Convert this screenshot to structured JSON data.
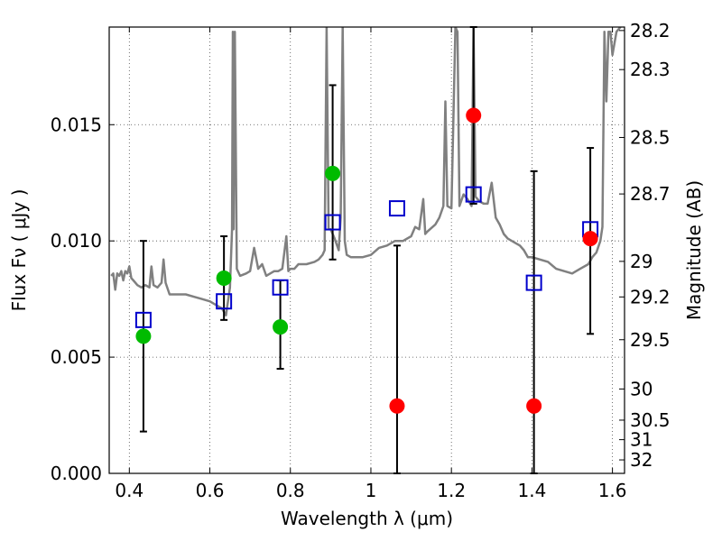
{
  "chart_data": {
    "type": "scatter",
    "xlabel": "Wavelength  λ (μm)",
    "ylabel": "Flux  Fν  ( μJy )",
    "y2label": "Magnitude (AB)",
    "xlim": [
      0.35,
      1.63
    ],
    "ylim": [
      0.0,
      0.0192
    ],
    "xticks": [
      0.4,
      0.6,
      0.8,
      1.0,
      1.2,
      1.4,
      1.6
    ],
    "xtick_labels": [
      "0.4",
      "0.6",
      "0.8",
      "1",
      "1.2",
      "1.4",
      "1.6"
    ],
    "yticks": [
      0.0,
      0.005,
      0.01,
      0.015
    ],
    "ytick_labels": [
      "0.000",
      "0.005",
      "0.010",
      "0.015"
    ],
    "y2ticks": [
      {
        "label": "28.2",
        "flux": 0.01905
      },
      {
        "label": "28.3",
        "flux": 0.01737
      },
      {
        "label": "28.5",
        "flux": 0.01445
      },
      {
        "label": "28.7",
        "flux": 0.01202
      },
      {
        "label": "29",
        "flux": 0.00912
      },
      {
        "label": "29.2",
        "flux": 0.00759
      },
      {
        "label": "29.5",
        "flux": 0.00575
      },
      {
        "label": "30",
        "flux": 0.00363
      },
      {
        "label": "30.5",
        "flux": 0.00229
      },
      {
        "label": "31",
        "flux": 0.00145
      },
      {
        "label": "32",
        "flux": 0.00058
      }
    ],
    "grid": true,
    "series": [
      {
        "style": "line",
        "color": "#808080",
        "points": [
          [
            0.355,
            0.0085
          ],
          [
            0.36,
            0.0086
          ],
          [
            0.365,
            0.0079
          ],
          [
            0.37,
            0.0086
          ],
          [
            0.375,
            0.0085
          ],
          [
            0.38,
            0.0087
          ],
          [
            0.385,
            0.0083
          ],
          [
            0.39,
            0.0087
          ],
          [
            0.395,
            0.0086
          ],
          [
            0.4,
            0.0089
          ],
          [
            0.405,
            0.0084
          ],
          [
            0.41,
            0.0083
          ],
          [
            0.415,
            0.0082
          ],
          [
            0.42,
            0.0081
          ],
          [
            0.43,
            0.008
          ],
          [
            0.44,
            0.0081
          ],
          [
            0.45,
            0.008
          ],
          [
            0.455,
            0.0089
          ],
          [
            0.46,
            0.0081
          ],
          [
            0.47,
            0.008
          ],
          [
            0.48,
            0.0082
          ],
          [
            0.485,
            0.0092
          ],
          [
            0.49,
            0.0082
          ],
          [
            0.5,
            0.0077
          ],
          [
            0.52,
            0.0077
          ],
          [
            0.54,
            0.0077
          ],
          [
            0.56,
            0.0076
          ],
          [
            0.58,
            0.0075
          ],
          [
            0.6,
            0.0074
          ],
          [
            0.62,
            0.0072
          ],
          [
            0.63,
            0.0071
          ],
          [
            0.64,
            0.0068
          ],
          [
            0.645,
            0.0074
          ],
          [
            0.65,
            0.008
          ],
          [
            0.655,
            0.0105
          ],
          [
            0.657,
            0.019
          ],
          [
            0.659,
            0.0105
          ],
          [
            0.662,
            0.019
          ],
          [
            0.667,
            0.0088
          ],
          [
            0.675,
            0.0085
          ],
          [
            0.69,
            0.0086
          ],
          [
            0.7,
            0.0087
          ],
          [
            0.71,
            0.0097
          ],
          [
            0.72,
            0.0088
          ],
          [
            0.73,
            0.009
          ],
          [
            0.74,
            0.0085
          ],
          [
            0.75,
            0.0086
          ],
          [
            0.76,
            0.0087
          ],
          [
            0.77,
            0.0087
          ],
          [
            0.78,
            0.0088
          ],
          [
            0.79,
            0.0102
          ],
          [
            0.795,
            0.0087
          ],
          [
            0.8,
            0.0088
          ],
          [
            0.81,
            0.0088
          ],
          [
            0.82,
            0.009
          ],
          [
            0.84,
            0.009
          ],
          [
            0.86,
            0.0091
          ],
          [
            0.87,
            0.0092
          ],
          [
            0.88,
            0.0094
          ],
          [
            0.885,
            0.0096
          ],
          [
            0.89,
            0.0192
          ],
          [
            0.895,
            0.0105
          ],
          [
            0.9,
            0.0105
          ],
          [
            0.91,
            0.0101
          ],
          [
            0.92,
            0.0096
          ],
          [
            0.925,
            0.011
          ],
          [
            0.93,
            0.0192
          ],
          [
            0.935,
            0.01
          ],
          [
            0.94,
            0.0094
          ],
          [
            0.95,
            0.0093
          ],
          [
            0.96,
            0.0093
          ],
          [
            0.98,
            0.0093
          ],
          [
            1.0,
            0.0094
          ],
          [
            1.02,
            0.0097
          ],
          [
            1.04,
            0.0098
          ],
          [
            1.06,
            0.01
          ],
          [
            1.08,
            0.01
          ],
          [
            1.1,
            0.0102
          ],
          [
            1.11,
            0.0106
          ],
          [
            1.12,
            0.0105
          ],
          [
            1.13,
            0.0118
          ],
          [
            1.135,
            0.0103
          ],
          [
            1.14,
            0.0104
          ],
          [
            1.16,
            0.0107
          ],
          [
            1.17,
            0.011
          ],
          [
            1.18,
            0.0115
          ],
          [
            1.185,
            0.016
          ],
          [
            1.19,
            0.0115
          ],
          [
            1.2,
            0.0114
          ],
          [
            1.21,
            0.0192
          ],
          [
            1.215,
            0.019
          ],
          [
            1.22,
            0.0115
          ],
          [
            1.23,
            0.012
          ],
          [
            1.24,
            0.0118
          ],
          [
            1.25,
            0.0115
          ],
          [
            1.255,
            0.0192
          ],
          [
            1.26,
            0.0119
          ],
          [
            1.27,
            0.0117
          ],
          [
            1.28,
            0.0116
          ],
          [
            1.29,
            0.0116
          ],
          [
            1.3,
            0.0125
          ],
          [
            1.31,
            0.011
          ],
          [
            1.32,
            0.0107
          ],
          [
            1.33,
            0.0103
          ],
          [
            1.34,
            0.0101
          ],
          [
            1.35,
            0.01
          ],
          [
            1.36,
            0.0099
          ],
          [
            1.37,
            0.0098
          ],
          [
            1.38,
            0.0096
          ],
          [
            1.39,
            0.0093
          ],
          [
            1.4,
            0.0093
          ],
          [
            1.42,
            0.0092
          ],
          [
            1.44,
            0.0091
          ],
          [
            1.46,
            0.0088
          ],
          [
            1.48,
            0.0087
          ],
          [
            1.5,
            0.0086
          ],
          [
            1.52,
            0.0088
          ],
          [
            1.54,
            0.009
          ],
          [
            1.55,
            0.0093
          ],
          [
            1.56,
            0.0095
          ],
          [
            1.57,
            0.01
          ],
          [
            1.575,
            0.0106
          ],
          [
            1.58,
            0.019
          ],
          [
            1.585,
            0.016
          ],
          [
            1.59,
            0.019
          ],
          [
            1.595,
            0.019
          ],
          [
            1.6,
            0.018
          ],
          [
            1.61,
            0.019
          ],
          [
            1.62,
            0.0192
          ]
        ]
      },
      {
        "style": "points",
        "marker": "square",
        "color": "#0000cc",
        "x": [
          0.435,
          0.635,
          0.775,
          0.905,
          1.065,
          1.255,
          1.405,
          1.545
        ],
        "y": [
          0.0066,
          0.0074,
          0.008,
          0.0108,
          0.0114,
          0.012,
          0.0082,
          0.0105
        ]
      },
      {
        "style": "points",
        "marker": "circle",
        "color": "#00bb00",
        "x": [
          0.435,
          0.635,
          0.775,
          0.905
        ],
        "y": [
          0.0059,
          0.0084,
          0.0063,
          0.0129
        ]
      },
      {
        "style": "points",
        "marker": "circle",
        "color": "#ff0000",
        "x": [
          1.065,
          1.255,
          1.405,
          1.545
        ],
        "y": [
          0.0029,
          0.0154,
          0.0029,
          0.0101
        ]
      },
      {
        "style": "errorbars",
        "color": "#000000",
        "x": [
          0.435,
          0.635,
          0.775,
          0.905,
          1.065,
          1.255,
          1.405,
          1.545
        ],
        "low": [
          0.0018,
          0.0066,
          0.0045,
          0.0092,
          0.0,
          0.0116,
          0.0,
          0.006
        ],
        "high": [
          0.01,
          0.0102,
          0.0083,
          0.0167,
          0.0098,
          0.0192,
          0.013,
          0.014
        ]
      }
    ]
  }
}
